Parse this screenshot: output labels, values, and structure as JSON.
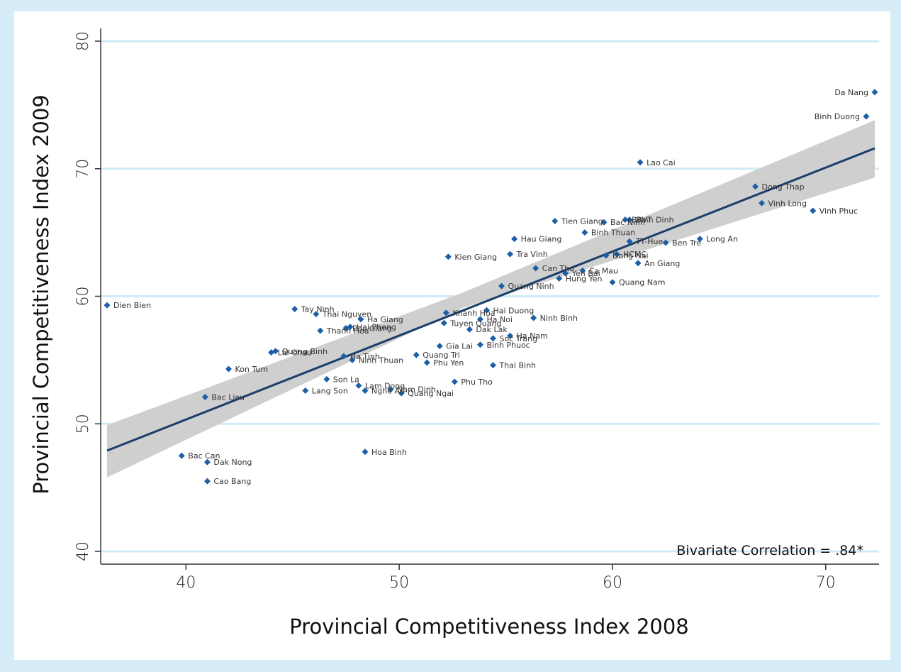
{
  "chart_data": {
    "type": "scatter",
    "xlabel": "Provincial Competitiveness Index 2008",
    "ylabel": "Provincial Competitiveness Index  2009",
    "xlim": [
      36,
      72.5
    ],
    "ylim": [
      39,
      81
    ],
    "xticks": [
      40,
      50,
      60,
      70
    ],
    "yticks": [
      40,
      50,
      60,
      70,
      80
    ],
    "grid": "horizontal",
    "annotation": "Bivariate Correlation = .84*",
    "fit_line": {
      "x0": 36.3,
      "y0": 47.9,
      "x1": 72.3,
      "y1": 71.6
    },
    "confidence_band": {
      "upper": [
        [
          36.3,
          49.9
        ],
        [
          53,
          60.3
        ],
        [
          72.3,
          73.8
        ]
      ],
      "lower": [
        [
          36.3,
          45.8
        ],
        [
          53,
          59.1
        ],
        [
          72.3,
          69.3
        ]
      ]
    },
    "colors": {
      "points": "#1d5fa6",
      "line": "#1a3d6a",
      "band": "#cfcfcf",
      "grid": "#d0ebf7",
      "background": "#d6edf8"
    },
    "points": [
      {
        "label": "Da Nang",
        "x": 72.3,
        "y": 76.0
      },
      {
        "label": "Binh Duong",
        "x": 71.9,
        "y": 74.1
      },
      {
        "label": "Lao Cai",
        "x": 61.3,
        "y": 70.5
      },
      {
        "label": "Dong Thap",
        "x": 66.7,
        "y": 68.6
      },
      {
        "label": "Vinh Long",
        "x": 67.0,
        "y": 67.3
      },
      {
        "label": "Vinh Phuc",
        "x": 69.4,
        "y": 66.7
      },
      {
        "label": "BRVT",
        "x": 60.6,
        "y": 66.0
      },
      {
        "label": "Binh Dinh",
        "x": 60.8,
        "y": 66.0
      },
      {
        "label": "Tien Giang",
        "x": 57.3,
        "y": 65.9
      },
      {
        "label": "Bac Ninh",
        "x": 59.6,
        "y": 65.8
      },
      {
        "label": "Binh Thuan",
        "x": 58.7,
        "y": 65.0
      },
      {
        "label": "Hau Giang",
        "x": 55.4,
        "y": 64.5
      },
      {
        "label": "Long An",
        "x": 64.1,
        "y": 64.5
      },
      {
        "label": "TT-Hue",
        "x": 60.8,
        "y": 64.3
      },
      {
        "label": "Ben Tre",
        "x": 62.5,
        "y": 64.2
      },
      {
        "label": "Kien Giang",
        "x": 52.3,
        "y": 63.1
      },
      {
        "label": "Tra Vinh",
        "x": 55.2,
        "y": 63.3
      },
      {
        "label": "HCMC",
        "x": 60.2,
        "y": 63.3
      },
      {
        "label": "Dong Nai",
        "x": 59.7,
        "y": 63.2
      },
      {
        "label": "Can Tho",
        "x": 56.4,
        "y": 62.2
      },
      {
        "label": "An Giang",
        "x": 61.2,
        "y": 62.6
      },
      {
        "label": "Ca Mau",
        "x": 58.6,
        "y": 62.0
      },
      {
        "label": "Yen Bai",
        "x": 57.8,
        "y": 61.8
      },
      {
        "label": "Hung Yen",
        "x": 57.5,
        "y": 61.4
      },
      {
        "label": "Quang Nam",
        "x": 60.0,
        "y": 61.1
      },
      {
        "label": "Quang Ninh",
        "x": 54.8,
        "y": 60.8
      },
      {
        "label": "Dien Bien",
        "x": 36.3,
        "y": 59.3
      },
      {
        "label": "Tay Ninh",
        "x": 45.1,
        "y": 59.0
      },
      {
        "label": "Thai Nguyen",
        "x": 46.1,
        "y": 58.6
      },
      {
        "label": "Khanh Hoa",
        "x": 52.2,
        "y": 58.7
      },
      {
        "label": "Hai Duong",
        "x": 54.1,
        "y": 58.9
      },
      {
        "label": "Ha Giang",
        "x": 48.2,
        "y": 58.2
      },
      {
        "label": "Ha Noi",
        "x": 53.8,
        "y": 58.2
      },
      {
        "label": "Ninh Binh",
        "x": 56.3,
        "y": 58.3
      },
      {
        "label": "Tuyen Quang",
        "x": 52.1,
        "y": 57.9
      },
      {
        "label": "Hai Phong",
        "x": 47.7,
        "y": 57.6
      },
      {
        "label": "Bac Giang",
        "x": 47.5,
        "y": 57.5
      },
      {
        "label": "Thanh Hoa",
        "x": 46.3,
        "y": 57.3
      },
      {
        "label": "Dak Lak",
        "x": 53.3,
        "y": 57.4
      },
      {
        "label": "Ha Nam",
        "x": 55.2,
        "y": 56.9
      },
      {
        "label": "Soc Trang",
        "x": 54.4,
        "y": 56.7
      },
      {
        "label": "Binh Phuoc",
        "x": 53.8,
        "y": 56.2
      },
      {
        "label": "Gia Lai",
        "x": 51.9,
        "y": 56.1
      },
      {
        "label": "Quang Binh",
        "x": 44.2,
        "y": 55.7
      },
      {
        "label": "Lai Chau",
        "x": 44.0,
        "y": 55.6
      },
      {
        "label": "Ha Tinh",
        "x": 47.4,
        "y": 55.3
      },
      {
        "label": "Quang Tri",
        "x": 50.8,
        "y": 55.4
      },
      {
        "label": "Ninh Thuan",
        "x": 47.8,
        "y": 55.0
      },
      {
        "label": "Phu Yen",
        "x": 51.3,
        "y": 54.8
      },
      {
        "label": "Thai Binh",
        "x": 54.4,
        "y": 54.6
      },
      {
        "label": "Kon Tum",
        "x": 42.0,
        "y": 54.3
      },
      {
        "label": "Son La",
        "x": 46.6,
        "y": 53.5
      },
      {
        "label": "Lam Dong",
        "x": 48.1,
        "y": 53.0
      },
      {
        "label": "Phu Tho",
        "x": 52.6,
        "y": 53.3
      },
      {
        "label": "Nam Dinh",
        "x": 49.6,
        "y": 52.7
      },
      {
        "label": "Nghe An",
        "x": 48.4,
        "y": 52.6
      },
      {
        "label": "Quang Ngai",
        "x": 50.1,
        "y": 52.4
      },
      {
        "label": "Lang Son",
        "x": 45.6,
        "y": 52.6
      },
      {
        "label": "Bac Lieu",
        "x": 40.9,
        "y": 52.1
      },
      {
        "label": "Hoa Binh",
        "x": 48.4,
        "y": 47.8
      },
      {
        "label": "Bac Can",
        "x": 39.8,
        "y": 47.5
      },
      {
        "label": "Dak Nong",
        "x": 41.0,
        "y": 47.0
      },
      {
        "label": "Cao Bang",
        "x": 41.0,
        "y": 45.5
      }
    ]
  }
}
